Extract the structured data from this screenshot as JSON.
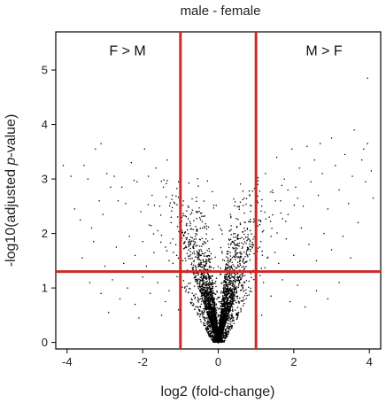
{
  "chart_data": {
    "type": "scatter",
    "title": "male - female",
    "xlabel": "log2 (fold-change)",
    "ylabel_prefix": "-log10(adjusted ",
    "ylabel_italic": "p",
    "ylabel_suffix": "-value)",
    "xlim": [
      -4.3,
      4.3
    ],
    "ylim": [
      -0.12,
      5.7
    ],
    "x_ticks": [
      -4,
      -2,
      0,
      2,
      4
    ],
    "y_ticks": [
      0,
      1,
      2,
      3,
      4,
      5
    ],
    "grid": false,
    "thresholds": {
      "x": [
        -1,
        1
      ],
      "y": 1.3,
      "color": "#cc2929"
    },
    "annotations": [
      {
        "text": "F > M",
        "x": -2.4,
        "y": 5.35
      },
      {
        "text": "M > F",
        "x": 2.8,
        "y": 5.35
      }
    ],
    "point_color": "#000000",
    "points": [
      [
        -4.1,
        3.25
      ],
      [
        -3.9,
        3.05
      ],
      [
        -3.55,
        3.25
      ],
      [
        -3.45,
        3.0
      ],
      [
        -3.25,
        3.55
      ],
      [
        -3.1,
        3.65
      ],
      [
        -2.95,
        3.1
      ],
      [
        -2.85,
        2.85
      ],
      [
        -2.75,
        3.05
      ],
      [
        -2.65,
        2.6
      ],
      [
        -3.8,
        2.45
      ],
      [
        -3.65,
        2.25
      ],
      [
        -3.35,
        2.1
      ],
      [
        -3.15,
        2.6
      ],
      [
        -3.05,
        2.35
      ],
      [
        -2.55,
        2.85
      ],
      [
        -2.45,
        2.55
      ],
      [
        -2.3,
        3.3
      ],
      [
        -2.15,
        2.95
      ],
      [
        -2.05,
        2.4
      ],
      [
        -1.95,
        3.55
      ],
      [
        -1.85,
        3.05
      ],
      [
        -1.75,
        2.7
      ],
      [
        -1.65,
        3.2
      ],
      [
        -1.55,
        2.5
      ],
      [
        -1.45,
        2.85
      ],
      [
        -1.35,
        3.35
      ],
      [
        -1.25,
        2.2
      ],
      [
        -1.15,
        2.55
      ],
      [
        -1.05,
        2.95
      ],
      [
        -3.6,
        1.55
      ],
      [
        -3.3,
        1.85
      ],
      [
        -3.0,
        1.4
      ],
      [
        -2.7,
        1.75
      ],
      [
        -2.5,
        1.45
      ],
      [
        -2.35,
        1.95
      ],
      [
        -2.2,
        1.6
      ],
      [
        -2.0,
        1.85
      ],
      [
        -1.9,
        1.4
      ],
      [
        -1.7,
        1.65
      ],
      [
        -1.6,
        2.05
      ],
      [
        -1.4,
        1.75
      ],
      [
        -1.3,
        1.5
      ],
      [
        -1.2,
        1.9
      ],
      [
        -1.1,
        1.6
      ],
      [
        -3.4,
        1.1
      ],
      [
        -3.1,
        0.9
      ],
      [
        -2.8,
        1.15
      ],
      [
        -2.6,
        0.8
      ],
      [
        -2.4,
        1.0
      ],
      [
        -2.2,
        0.7
      ],
      [
        -2.0,
        1.2
      ],
      [
        -1.8,
        0.9
      ],
      [
        -1.6,
        1.1
      ],
      [
        -1.4,
        0.75
      ],
      [
        -2.9,
        0.55
      ],
      [
        -2.1,
        0.45
      ],
      [
        -1.5,
        0.5
      ],
      [
        -1.3,
        0.95
      ],
      [
        -1.05,
        0.6
      ],
      [
        1.05,
        2.9
      ],
      [
        1.15,
        2.5
      ],
      [
        1.25,
        3.1
      ],
      [
        1.35,
        2.3
      ],
      [
        1.45,
        2.75
      ],
      [
        1.55,
        3.4
      ],
      [
        1.65,
        2.6
      ],
      [
        1.75,
        3.0
      ],
      [
        1.85,
        2.35
      ],
      [
        1.95,
        3.55
      ],
      [
        2.05,
        2.85
      ],
      [
        2.15,
        3.2
      ],
      [
        2.25,
        2.5
      ],
      [
        2.35,
        3.6
      ],
      [
        2.45,
        2.95
      ],
      [
        2.55,
        3.35
      ],
      [
        2.65,
        2.7
      ],
      [
        2.75,
        3.1
      ],
      [
        2.9,
        2.45
      ],
      [
        3.0,
        3.75
      ],
      [
        3.1,
        3.25
      ],
      [
        3.2,
        2.8
      ],
      [
        3.35,
        3.45
      ],
      [
        3.45,
        2.55
      ],
      [
        3.55,
        3.05
      ],
      [
        3.7,
        2.2
      ],
      [
        3.8,
        3.35
      ],
      [
        3.9,
        2.95
      ],
      [
        3.95,
        3.65
      ],
      [
        4.05,
        3.15
      ],
      [
        3.95,
        4.85
      ],
      [
        3.85,
        3.55
      ],
      [
        4.1,
        2.65
      ],
      [
        3.6,
        3.9
      ],
      [
        2.7,
        3.65
      ],
      [
        1.1,
        1.75
      ],
      [
        1.2,
        2.05
      ],
      [
        1.3,
        1.55
      ],
      [
        1.4,
        1.95
      ],
      [
        1.5,
        1.65
      ],
      [
        1.6,
        1.45
      ],
      [
        1.8,
        1.9
      ],
      [
        2.0,
        1.6
      ],
      [
        2.2,
        2.1
      ],
      [
        2.4,
        1.8
      ],
      [
        2.6,
        1.5
      ],
      [
        2.8,
        2.0
      ],
      [
        3.0,
        1.7
      ],
      [
        3.3,
        1.95
      ],
      [
        3.5,
        1.55
      ],
      [
        1.2,
        1.1
      ],
      [
        1.4,
        0.85
      ],
      [
        1.7,
        1.15
      ],
      [
        1.9,
        0.75
      ],
      [
        2.1,
        1.05
      ],
      [
        2.3,
        0.65
      ],
      [
        2.6,
        0.95
      ],
      [
        2.9,
        0.8
      ],
      [
        3.2,
        1.1
      ],
      [
        1.15,
        0.5
      ]
    ],
    "cloud_point_count": 4200
  }
}
